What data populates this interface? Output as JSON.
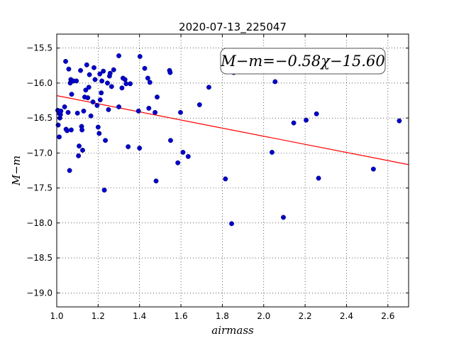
{
  "chart_data": {
    "type": "scatter",
    "title": "2020-07-13_225047",
    "xlabel": "airmass",
    "ylabel": "M−m",
    "annotation": "M−m=−0.58χ−15.60",
    "xlim": [
      1.0,
      2.7
    ],
    "ylim": [
      -19.2,
      -15.3
    ],
    "xticks": [
      1.0,
      1.2,
      1.4,
      1.6,
      1.8,
      2.0,
      2.2,
      2.4,
      2.6
    ],
    "xtick_labels": [
      "1.0",
      "1.2",
      "1.4",
      "1.6",
      "1.8",
      "2.0",
      "2.2",
      "2.4",
      "2.6"
    ],
    "yticks": [
      -15.5,
      -16.0,
      -16.5,
      -17.0,
      -17.5,
      -18.0,
      -18.5,
      -19.0
    ],
    "ytick_labels": [
      "−15.5",
      "−16.0",
      "−16.5",
      "−17.0",
      "−17.5",
      "−18.0",
      "−18.5",
      "−19.0"
    ],
    "grid": true,
    "fit_line": {
      "slope": -0.58,
      "intercept": -15.6,
      "color": "#ff0000"
    },
    "point_color": "#0000cc",
    "points": [
      [
        1.005,
        -16.39
      ],
      [
        1.007,
        -16.6
      ],
      [
        1.01,
        -16.43
      ],
      [
        1.012,
        -16.77
      ],
      [
        1.015,
        -16.5
      ],
      [
        1.018,
        -16.45
      ],
      [
        1.02,
        -16.4
      ],
      [
        1.038,
        -16.34
      ],
      [
        1.043,
        -15.69
      ],
      [
        1.045,
        -16.66
      ],
      [
        1.05,
        -16.68
      ],
      [
        1.055,
        -16.42
      ],
      [
        1.058,
        -15.8
      ],
      [
        1.062,
        -17.25
      ],
      [
        1.065,
        -16.0
      ],
      [
        1.068,
        -15.95
      ],
      [
        1.07,
        -16.67
      ],
      [
        1.072,
        -16.16
      ],
      [
        1.075,
        -15.97
      ],
      [
        1.08,
        -15.97
      ],
      [
        1.095,
        -15.97
      ],
      [
        1.1,
        -16.43
      ],
      [
        1.105,
        -17.04
      ],
      [
        1.108,
        -16.9
      ],
      [
        1.115,
        -15.82
      ],
      [
        1.12,
        -16.62
      ],
      [
        1.122,
        -16.67
      ],
      [
        1.125,
        -16.96
      ],
      [
        1.13,
        -16.4
      ],
      [
        1.135,
        -16.2
      ],
      [
        1.14,
        -16.1
      ],
      [
        1.145,
        -15.74
      ],
      [
        1.15,
        -16.21
      ],
      [
        1.155,
        -16.06
      ],
      [
        1.158,
        -15.88
      ],
      [
        1.165,
        -16.47
      ],
      [
        1.175,
        -16.27
      ],
      [
        1.18,
        -15.78
      ],
      [
        1.185,
        -15.95
      ],
      [
        1.195,
        -16.32
      ],
      [
        1.2,
        -16.63
      ],
      [
        1.205,
        -16.72
      ],
      [
        1.208,
        -15.87
      ],
      [
        1.21,
        -16.24
      ],
      [
        1.215,
        -16.14
      ],
      [
        1.218,
        -15.97
      ],
      [
        1.225,
        -15.83
      ],
      [
        1.23,
        -17.53
      ],
      [
        1.235,
        -16.82
      ],
      [
        1.245,
        -16.0
      ],
      [
        1.25,
        -16.38
      ],
      [
        1.255,
        -15.9
      ],
      [
        1.258,
        -15.86
      ],
      [
        1.265,
        -16.05
      ],
      [
        1.275,
        -15.81
      ],
      [
        1.3,
        -15.61
      ],
      [
        1.3,
        -16.34
      ],
      [
        1.315,
        -16.07
      ],
      [
        1.32,
        -15.93
      ],
      [
        1.33,
        -15.95
      ],
      [
        1.335,
        -16.01
      ],
      [
        1.345,
        -16.91
      ],
      [
        1.355,
        -16.01
      ],
      [
        1.395,
        -16.4
      ],
      [
        1.4,
        -16.93
      ],
      [
        1.402,
        -15.62
      ],
      [
        1.425,
        -15.79
      ],
      [
        1.44,
        -15.93
      ],
      [
        1.445,
        -16.36
      ],
      [
        1.45,
        -15.99
      ],
      [
        1.475,
        -16.42
      ],
      [
        1.48,
        -17.4
      ],
      [
        1.485,
        -16.2
      ],
      [
        1.545,
        -15.82
      ],
      [
        1.548,
        -15.85
      ],
      [
        1.55,
        -16.82
      ],
      [
        1.585,
        -17.14
      ],
      [
        1.598,
        -16.42
      ],
      [
        1.61,
        -16.99
      ],
      [
        1.635,
        -17.05
      ],
      [
        1.69,
        -16.31
      ],
      [
        1.735,
        -16.06
      ],
      [
        1.815,
        -17.37
      ],
      [
        1.845,
        -18.01
      ],
      [
        1.855,
        -15.85
      ],
      [
        2.04,
        -16.99
      ],
      [
        2.055,
        -15.98
      ],
      [
        2.095,
        -17.92
      ],
      [
        2.145,
        -16.57
      ],
      [
        2.205,
        -16.53
      ],
      [
        2.255,
        -16.44
      ],
      [
        2.265,
        -17.36
      ],
      [
        2.53,
        -17.23
      ],
      [
        2.655,
        -16.54
      ]
    ]
  }
}
